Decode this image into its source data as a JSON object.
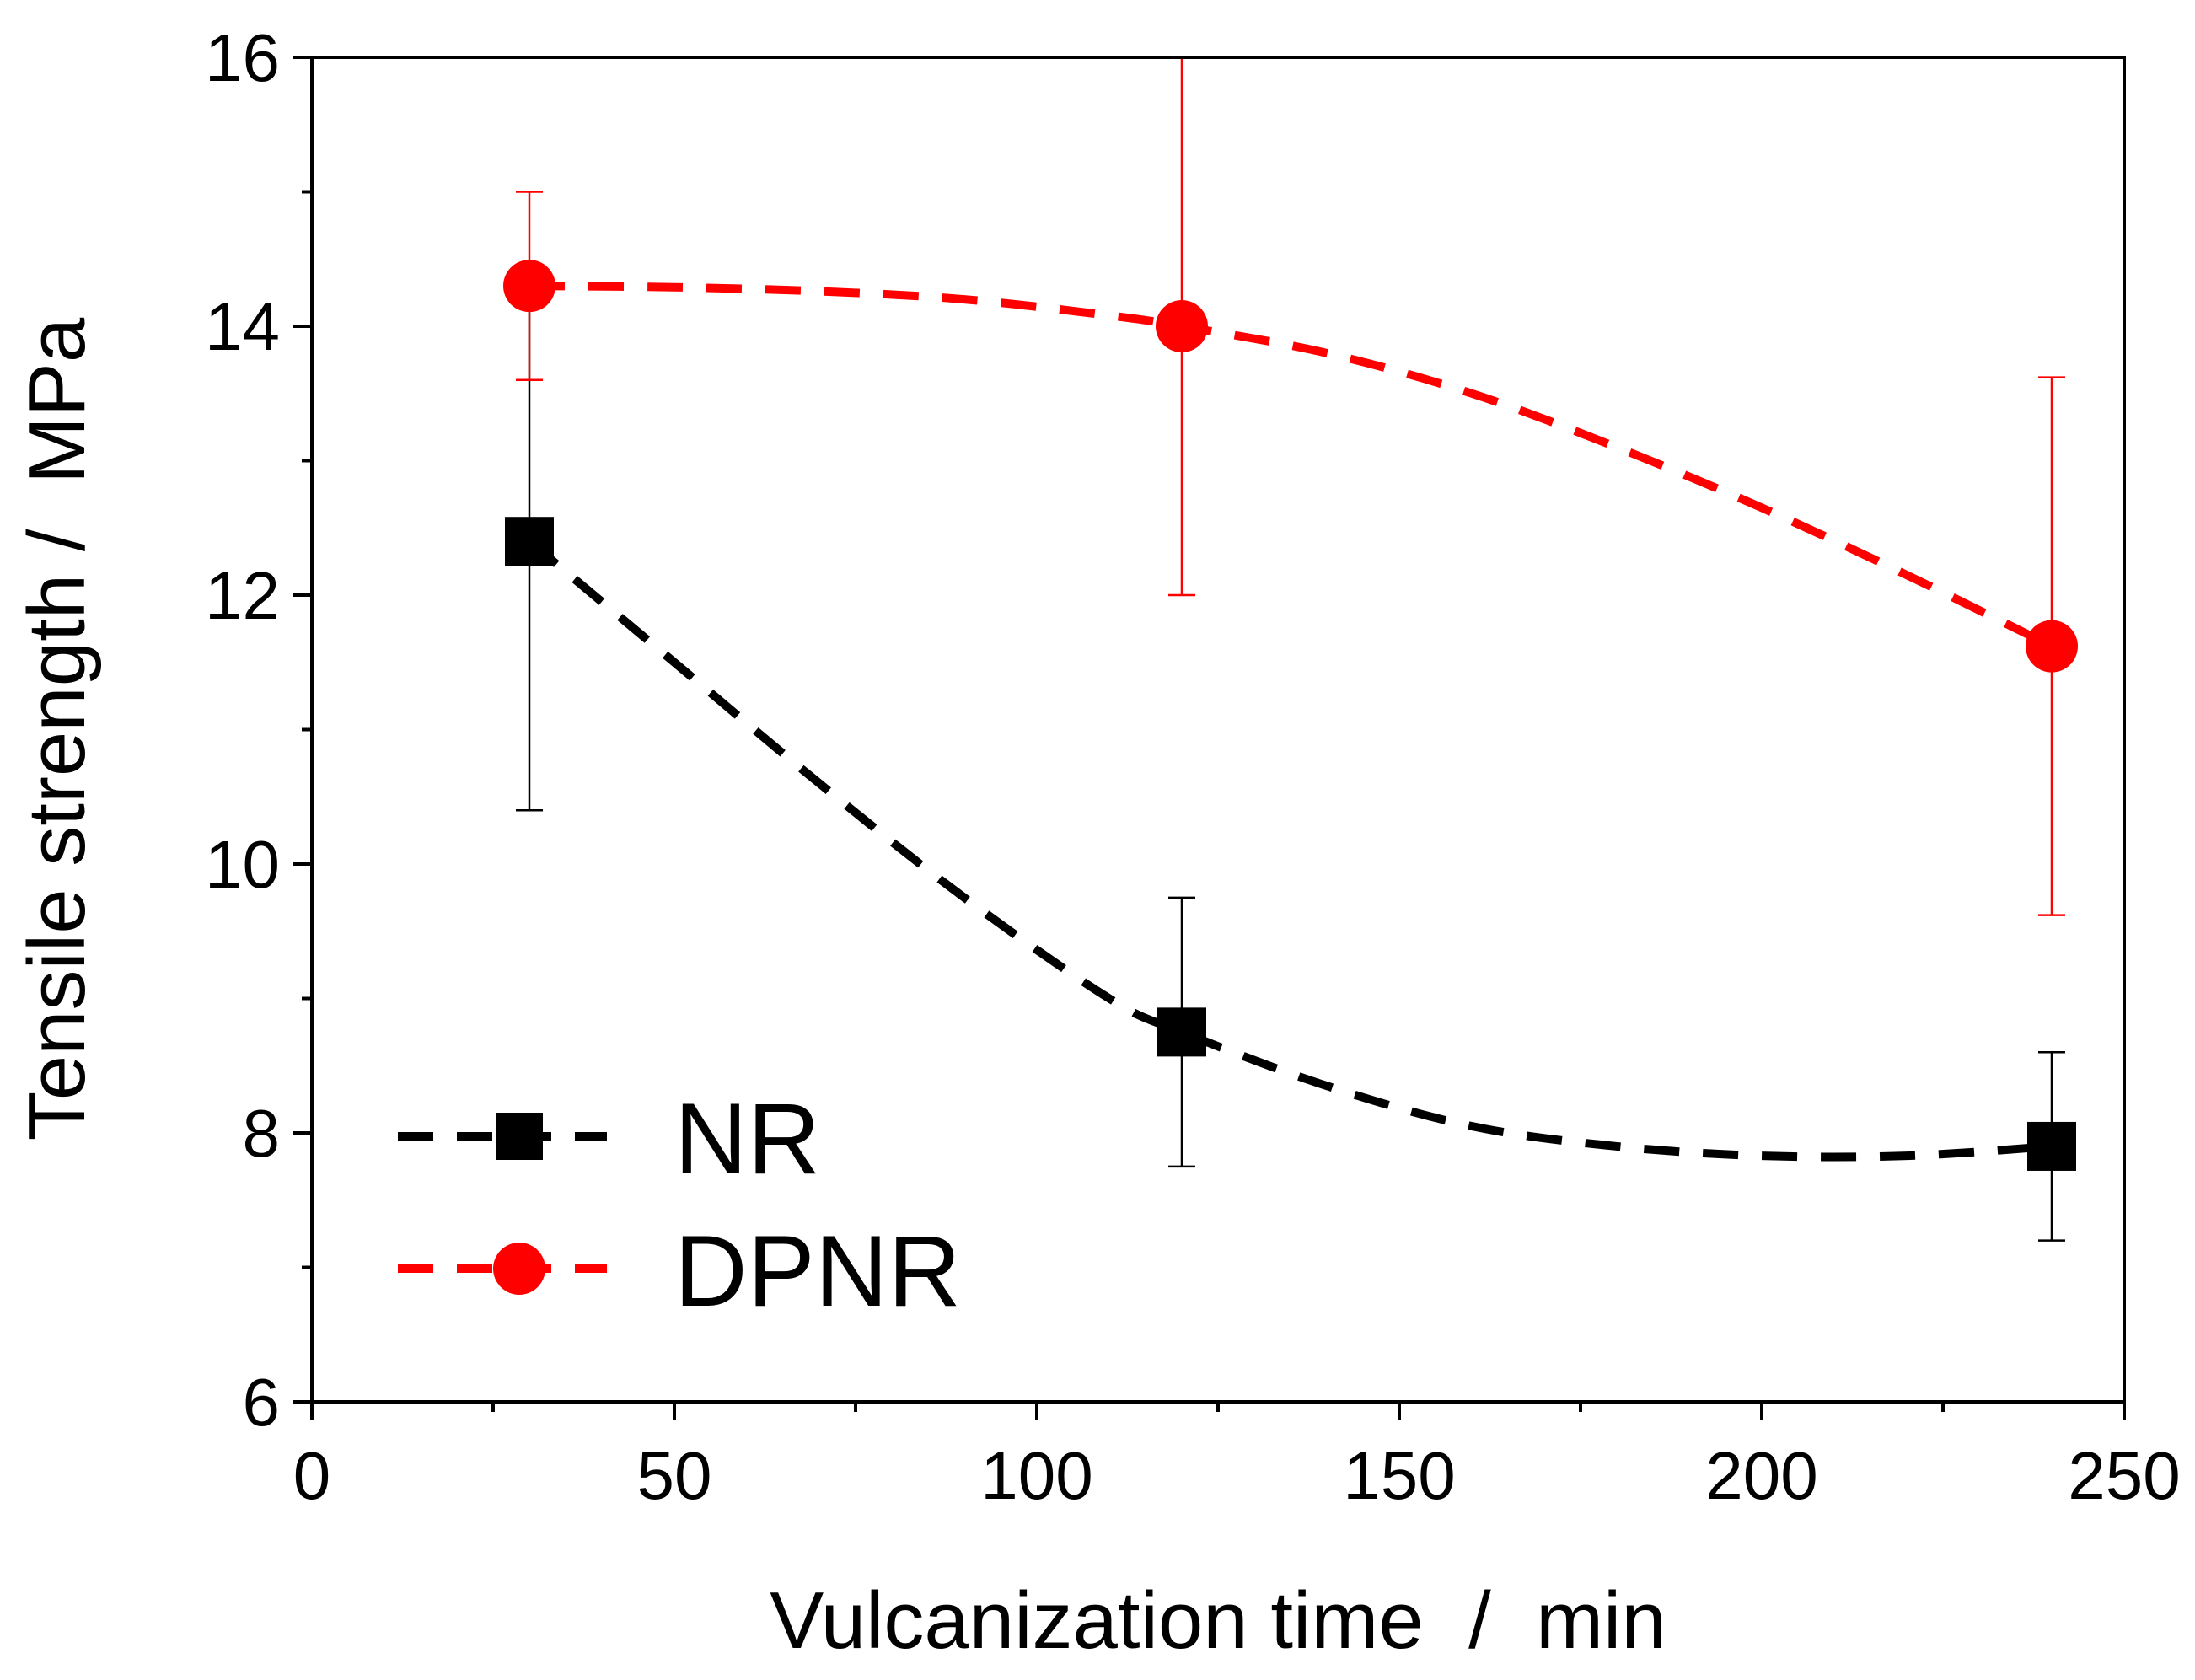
{
  "chart_data": {
    "type": "line",
    "title": "",
    "xlabel": "Vulcanization time  /  min",
    "ylabel": "Tensile strength /  MPa",
    "xlim": [
      0,
      250
    ],
    "ylim": [
      6,
      16
    ],
    "x_major_ticks": [
      0,
      50,
      100,
      150,
      200,
      250
    ],
    "x_tick_labels": [
      "0",
      "50",
      "100",
      "150",
      "200",
      "250"
    ],
    "x_minor_ticks": [
      25,
      75,
      125,
      175,
      225
    ],
    "y_major_ticks": [
      6,
      8,
      10,
      12,
      14,
      16
    ],
    "y_tick_labels": [
      "6",
      "8",
      "10",
      "12",
      "14",
      "16"
    ],
    "y_minor_ticks": [
      7,
      9,
      11,
      13,
      15
    ],
    "grid": false,
    "legend_position": "bottom-left",
    "series": [
      {
        "name": "NR",
        "color": "#000000",
        "marker": "square",
        "line_style": "dashed",
        "x": [
          30,
          120,
          240
        ],
        "y": [
          12.4,
          8.75,
          7.9
        ],
        "error": [
          2.0,
          1.0,
          0.7
        ],
        "curve_x": [
          30,
          50,
          70,
          90,
          110,
          120,
          140,
          160,
          180,
          200,
          220,
          240
        ],
        "curve_y": [
          12.4,
          11.5,
          10.6,
          9.75,
          9.0,
          8.75,
          8.35,
          8.05,
          7.9,
          7.83,
          7.83,
          7.9
        ]
      },
      {
        "name": "DPNR",
        "color": "#ff0000",
        "marker": "circle",
        "line_style": "dashed",
        "x": [
          30,
          120,
          240
        ],
        "y": [
          14.3,
          14.0,
          11.62
        ],
        "error": [
          0.7,
          2.0,
          2.0
        ],
        "curve_x": [
          30,
          50,
          70,
          90,
          110,
          120,
          140,
          160,
          180,
          200,
          220,
          240
        ],
        "curve_y": [
          14.3,
          14.29,
          14.26,
          14.2,
          14.08,
          14.0,
          13.8,
          13.5,
          13.1,
          12.65,
          12.15,
          11.62
        ]
      }
    ]
  }
}
